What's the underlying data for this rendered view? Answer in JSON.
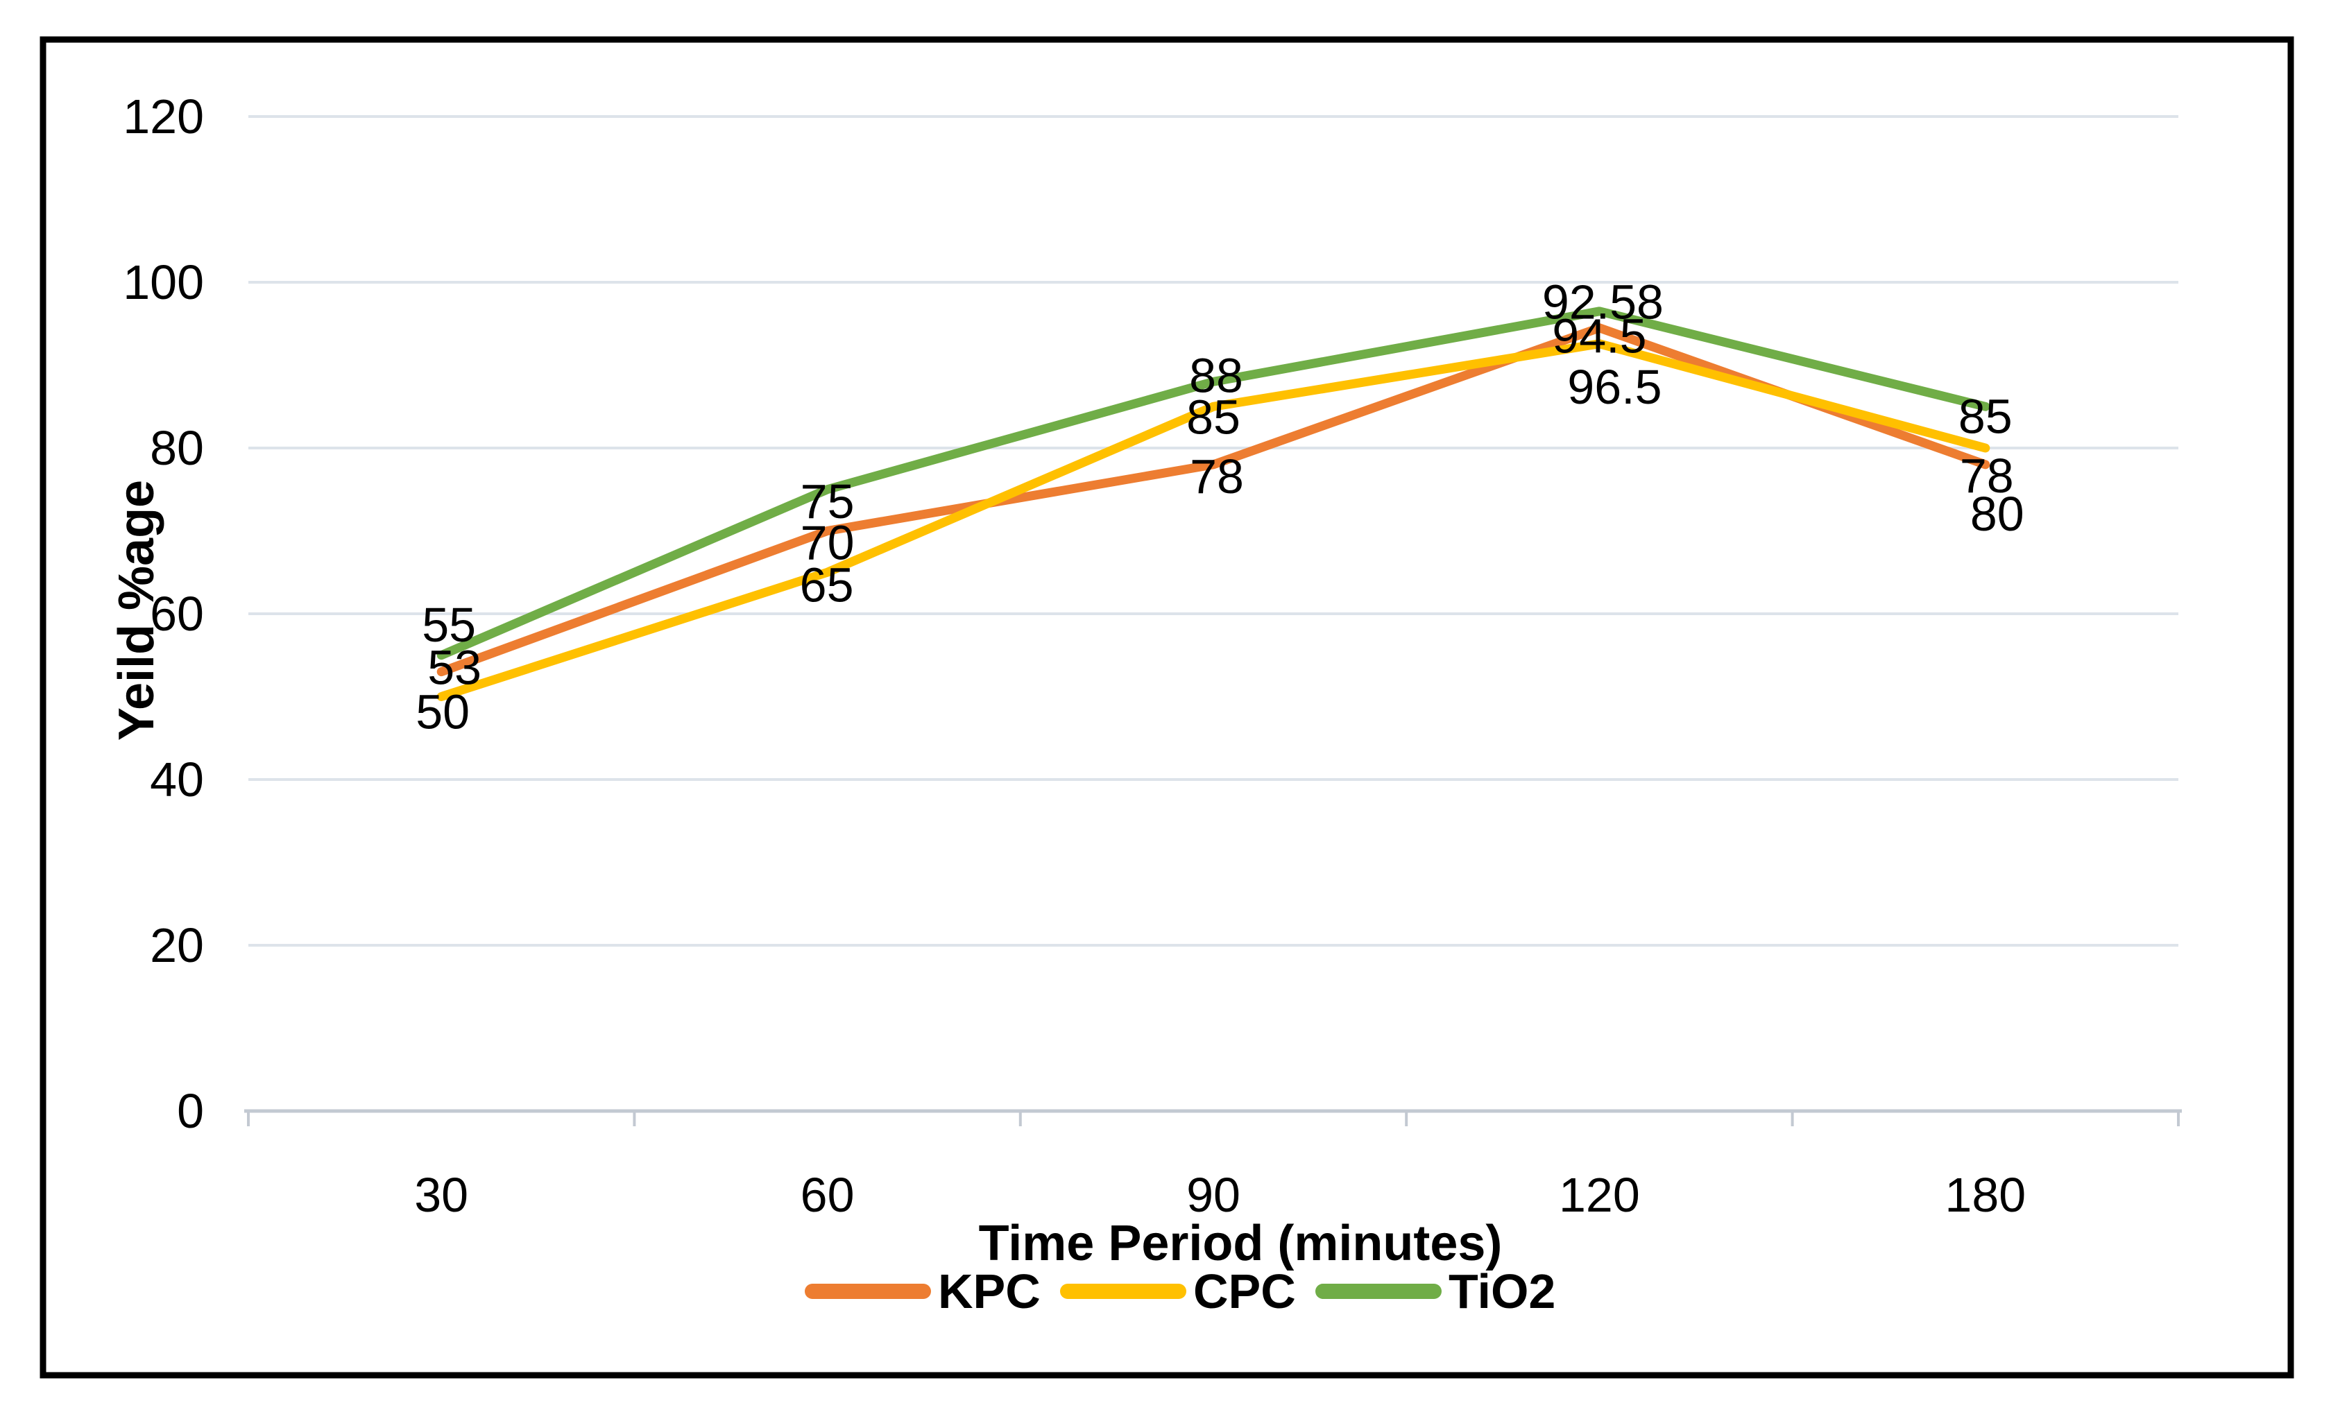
{
  "chart_data": {
    "type": "line",
    "title": "",
    "xlabel": "Time Period (minutes)",
    "ylabel": "Yeild %age",
    "categories": [
      "30",
      "60",
      "90",
      "120",
      "180"
    ],
    "series": [
      {
        "name": "KPC",
        "color": "#ED7D31",
        "values": [
          53,
          70,
          78,
          94.5,
          78
        ],
        "point_labels": [
          "53",
          "70",
          "78",
          "94.5",
          "78"
        ]
      },
      {
        "name": "CPC",
        "color": "#FFC000",
        "values": [
          50,
          65,
          85,
          92.58,
          80
        ],
        "point_labels": [
          "50",
          "65",
          "85",
          "92.58",
          "80"
        ]
      },
      {
        "name": "TiO2",
        "color": "#70AD47",
        "values": [
          55,
          75,
          88,
          96.5,
          85
        ],
        "point_labels": [
          "55",
          "75",
          "88",
          "96.5",
          "85"
        ]
      }
    ],
    "ylim": [
      0,
      120
    ],
    "yticks": [
      0,
      20,
      40,
      60,
      80,
      100,
      120
    ],
    "grid": true,
    "data_labels": true,
    "legend_position": "bottom"
  },
  "colors": {
    "background": "#ffffff",
    "border": "#000000",
    "gridline": "#dde3ea",
    "axis_line": "#c3c9d2",
    "text": "#000000"
  }
}
